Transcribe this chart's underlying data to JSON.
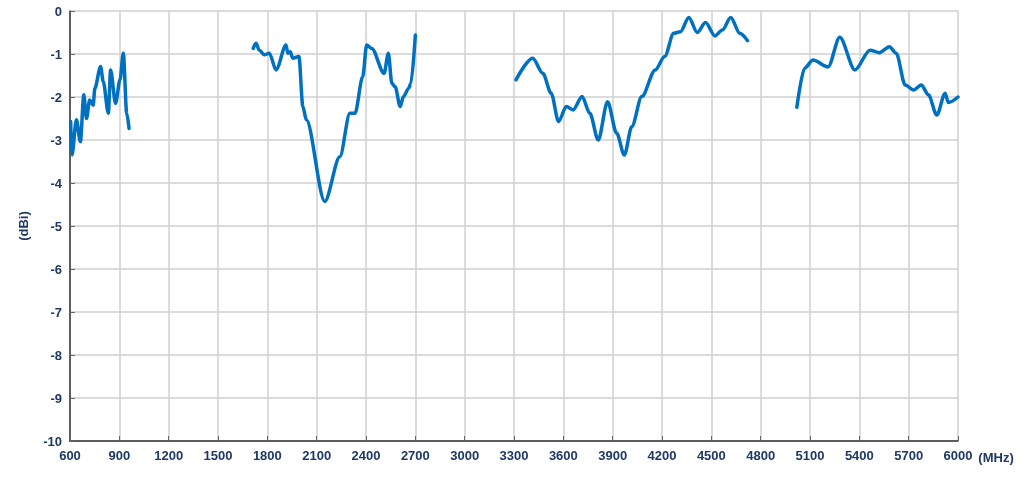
{
  "chart_data": {
    "type": "line",
    "xlabel": "(MHz)",
    "ylabel": "(dBi)",
    "xlim": [
      600,
      6000
    ],
    "xticks": [
      600,
      900,
      1200,
      1500,
      1800,
      2100,
      2400,
      2700,
      3000,
      3300,
      3600,
      3900,
      4200,
      4500,
      4800,
      5100,
      5400,
      5700,
      6000
    ],
    "ylim": [
      -10,
      0
    ],
    "yticks": [
      -10,
      -9,
      -8,
      -7,
      -6,
      -5,
      -4,
      -3,
      -2,
      -1,
      0
    ],
    "grid": true,
    "marker": "none",
    "line_style": "solid",
    "series": [
      {
        "color": "#0070c0",
        "x": [
          604,
          612,
          639,
          663,
          684,
          700,
          720,
          741,
          751,
          786,
          802,
          833,
          847,
          877,
          904,
          924,
          945,
          959,
          1300,
          1714,
          1731,
          1751,
          1782,
          1812,
          1853,
          1914,
          1924,
          1939,
          1955,
          1992,
          2016,
          2037,
          2149,
          2241,
          2302,
          2333,
          2380,
          2404,
          2435,
          2510,
          2536,
          2557,
          2577,
          2608,
          2628,
          2659,
          2673,
          2700,
          3000,
          3312,
          3414,
          3475,
          3526,
          3571,
          3618,
          3659,
          3714,
          3761,
          3812,
          3869,
          3924,
          3971,
          4016,
          4077,
          4159,
          4216,
          4271,
          4312,
          4363,
          4414,
          4465,
          4522,
          4567,
          4618,
          4673,
          4720,
          4850,
          5020,
          5067,
          5118,
          5210,
          5281,
          5373,
          5465,
          5522,
          5583,
          5624,
          5679,
          5730,
          5777,
          5820,
          5871,
          5922,
          5941,
          6000
        ],
        "values": [
          -2.57,
          -3.35,
          -2.53,
          -3.04,
          -1.95,
          -2.5,
          -2.07,
          -2.19,
          -1.8,
          -1.29,
          -1.64,
          -2.38,
          -1.37,
          -2.15,
          -1.6,
          -0.98,
          -2.38,
          -2.73,
          null,
          -0.87,
          -0.75,
          -0.91,
          -1.02,
          -0.98,
          -1.37,
          -0.79,
          -0.98,
          -0.95,
          -1.1,
          -1.06,
          -2.22,
          -2.53,
          -4.43,
          -3.39,
          -2.38,
          -2.38,
          -1.53,
          -0.79,
          -0.87,
          -1.45,
          -0.98,
          -1.68,
          -1.76,
          -2.22,
          -1.99,
          -1.8,
          -1.68,
          -0.56,
          null,
          -1.6,
          -1.1,
          -1.45,
          -1.91,
          -2.57,
          -2.22,
          -2.3,
          -1.99,
          -2.38,
          -3.0,
          -2.11,
          -2.84,
          -3.35,
          -2.69,
          -1.99,
          -1.37,
          -1.06,
          -0.52,
          -0.48,
          -0.15,
          -0.5,
          -0.27,
          -0.58,
          -0.44,
          -0.15,
          -0.52,
          -0.69,
          null,
          -2.24,
          -1.33,
          -1.14,
          -1.3,
          -0.61,
          -1.37,
          -0.91,
          -0.97,
          -0.83,
          -0.98,
          -1.72,
          -1.84,
          -1.72,
          -1.95,
          -2.42,
          -1.91,
          -2.13,
          -2.0
        ]
      }
    ]
  }
}
